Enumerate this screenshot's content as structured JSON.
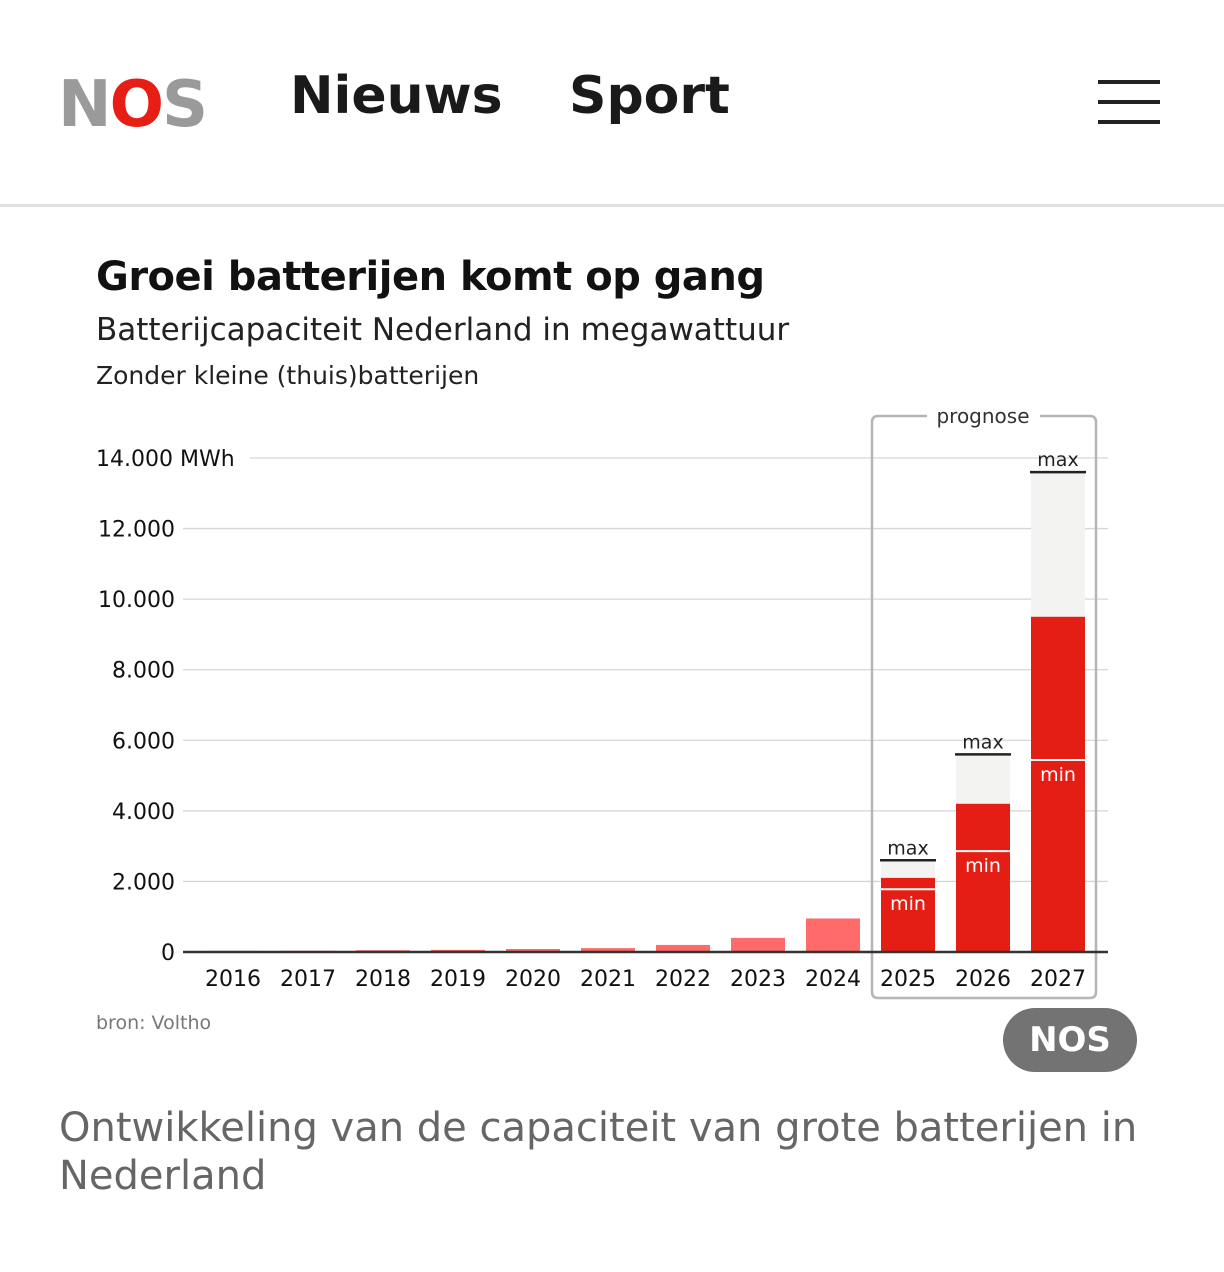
{
  "header": {
    "logo": {
      "n": "N",
      "o": "O",
      "s": "S"
    },
    "nav": [
      "Nieuws",
      "Sport"
    ],
    "menu_icon": "hamburger-icon"
  },
  "chart_data": {
    "type": "bar",
    "title": "Groei batterijen komt op gang",
    "subtitle": "Batterijcapaciteit Nederland in megawattuur",
    "note": "Zonder kleine (thuis)batterijen",
    "ylabel_unit": "14.000 MWh",
    "ylim": [
      0,
      14000
    ],
    "yticks": [
      0,
      2000,
      4000,
      6000,
      8000,
      10000,
      12000,
      14000
    ],
    "ytick_labels": [
      "0",
      "2.000",
      "4.000",
      "6.000",
      "8.000",
      "10.000",
      "12.000",
      "14.000 MWh"
    ],
    "categories": [
      "2016",
      "2017",
      "2018",
      "2019",
      "2020",
      "2021",
      "2022",
      "2023",
      "2024",
      "2025",
      "2026",
      "2027"
    ],
    "values": [
      30,
      35,
      50,
      60,
      85,
      110,
      200,
      400,
      950,
      null,
      null,
      null
    ],
    "forecast": [
      {
        "year": "2025",
        "min": 1780,
        "bar": 2100,
        "max": 2600
      },
      {
        "year": "2026",
        "min": 2860,
        "bar": 4200,
        "max": 5600
      },
      {
        "year": "2027",
        "min": 5440,
        "bar": 9500,
        "max": 13600
      }
    ],
    "forecast_label": "prognose",
    "min_label": "min",
    "max_label": "max",
    "colors": {
      "historic": "#ff6b6b",
      "forecast": "#e41e14",
      "range": "#f3f3f1"
    },
    "source": "bron: Voltho",
    "watermark": "NOS"
  },
  "caption": "Ontwikkeling van de capaciteit van grote batterijen in Nederland"
}
